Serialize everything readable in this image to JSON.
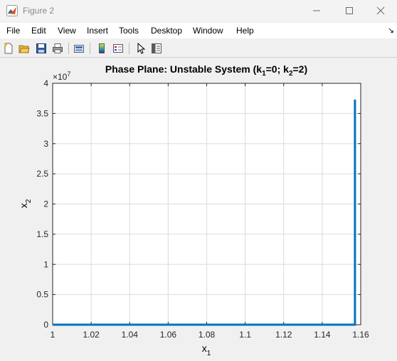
{
  "window": {
    "title": "Figure 2",
    "controls": [
      "minimize",
      "maximize",
      "close"
    ]
  },
  "menubar": {
    "items": [
      "File",
      "Edit",
      "View",
      "Insert",
      "Tools",
      "Desktop",
      "Window",
      "Help"
    ]
  },
  "toolbar": {
    "icons": [
      "new-figure-icon",
      "open-file-icon",
      "save-icon",
      "print-icon",
      "link-plot-icon",
      "colorbar-icon",
      "legend-icon",
      "pointer-icon",
      "property-editor-icon"
    ]
  },
  "chart_data": {
    "type": "line",
    "title_main": "Phase Plane: Unstable System (k",
    "title_sub1": "1",
    "title_mid": "=0; k",
    "title_sub2": "2",
    "title_end": "=2)",
    "xlabel_base": "x",
    "xlabel_sub": "1",
    "ylabel_base": "x",
    "ylabel_sub": "2",
    "exponent_label": "×10",
    "exponent_power": "7",
    "xlim": [
      1,
      1.16
    ],
    "ylim": [
      0,
      4
    ],
    "x_ticks": [
      "1",
      "1.02",
      "1.04",
      "1.06",
      "1.08",
      "1.1",
      "1.12",
      "1.14",
      "1.16"
    ],
    "x_tick_values": [
      1,
      1.02,
      1.04,
      1.06,
      1.08,
      1.1,
      1.12,
      1.14,
      1.16
    ],
    "y_ticks": [
      "0",
      "0.5",
      "1",
      "1.5",
      "2",
      "2.5",
      "3",
      "3.5",
      "4"
    ],
    "y_tick_values": [
      0,
      0.5,
      1,
      1.5,
      2,
      2.5,
      3,
      3.5,
      4
    ],
    "grid": true,
    "series": [
      {
        "color": "#0072bd",
        "x": [
          1,
          1.157,
          1.157
        ],
        "y": [
          0,
          0,
          3.73
        ]
      }
    ]
  }
}
